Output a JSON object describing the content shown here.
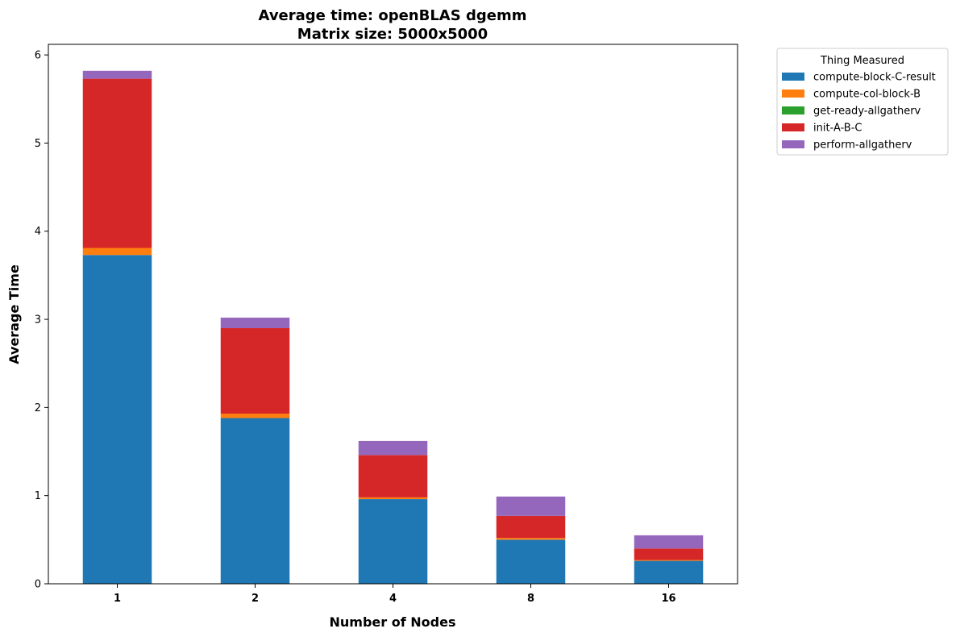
{
  "chart_data": {
    "type": "bar",
    "stacked": true,
    "title": "Average time: openBLAS dgemm",
    "subtitle": "Matrix size: 5000x5000",
    "xlabel": "Number of Nodes",
    "ylabel": "Average Time",
    "categories": [
      "1",
      "2",
      "4",
      "8",
      "16"
    ],
    "ylim": [
      0,
      6.12
    ],
    "yticks": [
      "0",
      "1",
      "2",
      "3",
      "4",
      "5",
      "6"
    ],
    "grid": false,
    "legend_title": "Thing Measured",
    "legend_position": "outside-top-right",
    "series": [
      {
        "name": "compute-block-C-result",
        "color": "#1f77b4",
        "values": [
          3.73,
          1.88,
          0.96,
          0.5,
          0.26
        ]
      },
      {
        "name": "compute-col-block-B",
        "color": "#ff7f0e",
        "values": [
          0.08,
          0.05,
          0.02,
          0.02,
          0.01
        ]
      },
      {
        "name": "get-ready-allgatherv",
        "color": "#2ca02c",
        "values": [
          0.0,
          0.0,
          0.0,
          0.0,
          0.0
        ]
      },
      {
        "name": "init-A-B-C",
        "color": "#d62728",
        "values": [
          1.92,
          0.97,
          0.48,
          0.25,
          0.13
        ]
      },
      {
        "name": "perform-allgatherv",
        "color": "#9467bd",
        "values": [
          0.09,
          0.12,
          0.16,
          0.22,
          0.15
        ]
      }
    ]
  }
}
